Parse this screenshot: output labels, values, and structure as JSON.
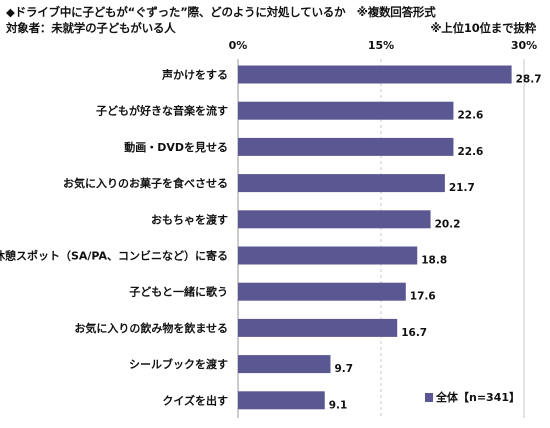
{
  "header": {
    "title": "◆ドライブ中に子どもが“ぐずった”際、どのように対処しているか　※複数回答形式",
    "subtitle": "対象者：未就学の子どもがいる人",
    "note": "※上位10位まで抜粋"
  },
  "legend": {
    "label": "全体【n=341】"
  },
  "colors": {
    "bar": "#5a5792",
    "axis": "#9a9a9a",
    "gridline": "#c8c8c8"
  },
  "chart_data": {
    "type": "bar",
    "orientation": "horizontal",
    "title": "◆ドライブ中に子どもが“ぐずった”際、どのように対処しているか　※複数回答形式",
    "categories": [
      "声かけをする",
      "子どもが好きな音楽を流す",
      "動画・DVDを見せる",
      "お気に入りのお菓子を食べさせる",
      "おもちゃを渡す",
      "休憩スポット（SA/PA、コンビニなど）に寄る",
      "子どもと一緒に歌う",
      "お気に入りの飲み物を飲ませる",
      "シールブックを渡す",
      "クイズを出す"
    ],
    "series": [
      {
        "name": "全体【n=341】",
        "values": [
          28.7,
          22.6,
          22.6,
          21.7,
          20.2,
          18.8,
          17.6,
          16.7,
          9.7,
          9.1
        ]
      }
    ],
    "xlim": [
      0,
      30
    ],
    "ticks": [
      0,
      15,
      30
    ],
    "tick_labels": [
      "0%",
      "15%",
      "30%"
    ],
    "grid": "dashed line at 15%",
    "legend_position": "bottom-right"
  }
}
